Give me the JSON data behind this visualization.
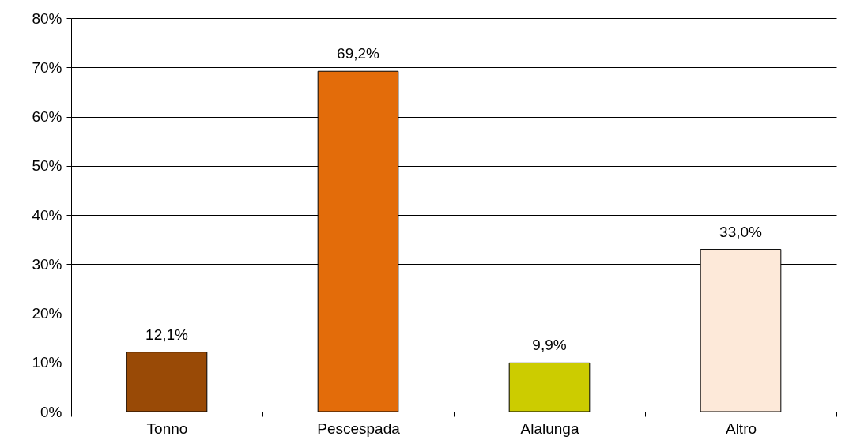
{
  "chart_data": {
    "type": "bar",
    "categories": [
      "Tonno",
      "Pescespada",
      "Alalunga",
      "Altro"
    ],
    "values": [
      12.1,
      69.2,
      9.9,
      33.0
    ],
    "colors": [
      "#994a06",
      "#e36c0a",
      "#cccc00",
      "#fde9d9"
    ],
    "value_labels": [
      "12,1%",
      "69,2%",
      "9,9%",
      "33,0%"
    ],
    "ylim": [
      0,
      80
    ],
    "yticks": [
      {
        "value": 0,
        "label": "0%"
      },
      {
        "value": 10,
        "label": "10%"
      },
      {
        "value": 20,
        "label": "20%"
      },
      {
        "value": 30,
        "label": "30%"
      },
      {
        "value": 40,
        "label": "40%"
      },
      {
        "value": 50,
        "label": "50%"
      },
      {
        "value": 60,
        "label": "60%"
      },
      {
        "value": 70,
        "label": "70%"
      },
      {
        "value": 80,
        "label": "80%"
      }
    ],
    "grid": "y"
  }
}
